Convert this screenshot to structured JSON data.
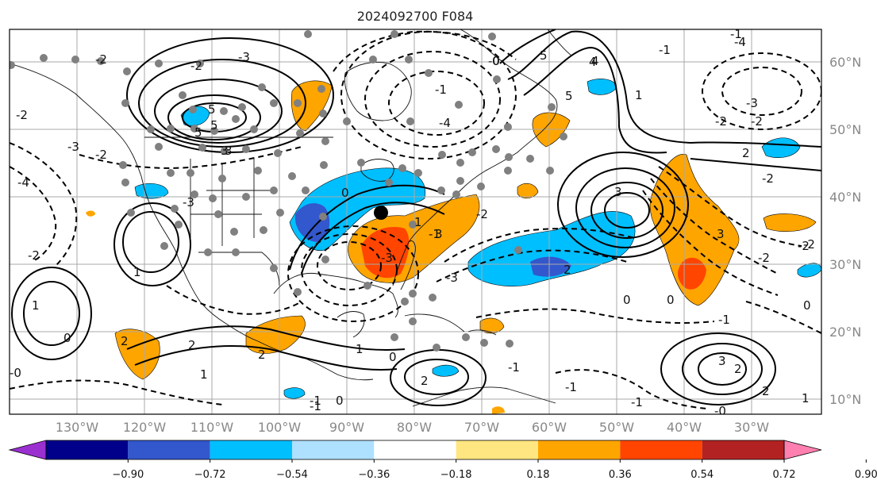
{
  "title": "2024092700 F084",
  "lat_labels": [
    "60°N",
    "50°N",
    "40°N",
    "30°N",
    "20°N",
    "10°N"
  ],
  "lon_labels": [
    "130°W",
    "120°W",
    "110°W",
    "100°W",
    "90°W",
    "80°W",
    "70°W",
    "60°W",
    "50°W",
    "40°W",
    "30°W"
  ],
  "colorbar": {
    "ticks": [
      "−0.90",
      "−0.72",
      "−0.54",
      "−0.36",
      "−0.18",
      "0.18",
      "0.36",
      "0.54",
      "0.72",
      "0.90"
    ],
    "colors": [
      "#9b30d0",
      "#00008b",
      "#3357cc",
      "#00bfff",
      "#aee0ff",
      "#ffffff",
      "#ffe680",
      "#ffa500",
      "#ff4500",
      "#b22222",
      "#ff80b0"
    ]
  },
  "contour_labels": [
    "-3",
    "-4",
    "-2",
    "-2",
    "2",
    "1",
    "-3",
    "-1",
    "3",
    "0",
    "-1",
    "-1",
    "-2",
    "-2",
    "1",
    "2",
    "5",
    "-2",
    "-0",
    "-1",
    "3",
    "-2",
    "-3",
    "-1",
    "0",
    "4",
    "-2",
    "5",
    "0",
    "3",
    "3",
    "3",
    "0",
    "0",
    "0",
    "1",
    "-3",
    "-2",
    "1",
    "1",
    "1",
    "-1",
    "-0",
    "-4",
    "-2",
    "2",
    "2",
    "2",
    "-4",
    "-3",
    "-3",
    "5",
    "2",
    "-2",
    "2",
    "0",
    "-1",
    "-0",
    "-1",
    "0",
    "-2",
    "-2",
    "2",
    "5",
    "4",
    "5",
    "3",
    "-1",
    "1",
    "-1"
  ],
  "marker_color": "#000000",
  "station_color": "#808080"
}
